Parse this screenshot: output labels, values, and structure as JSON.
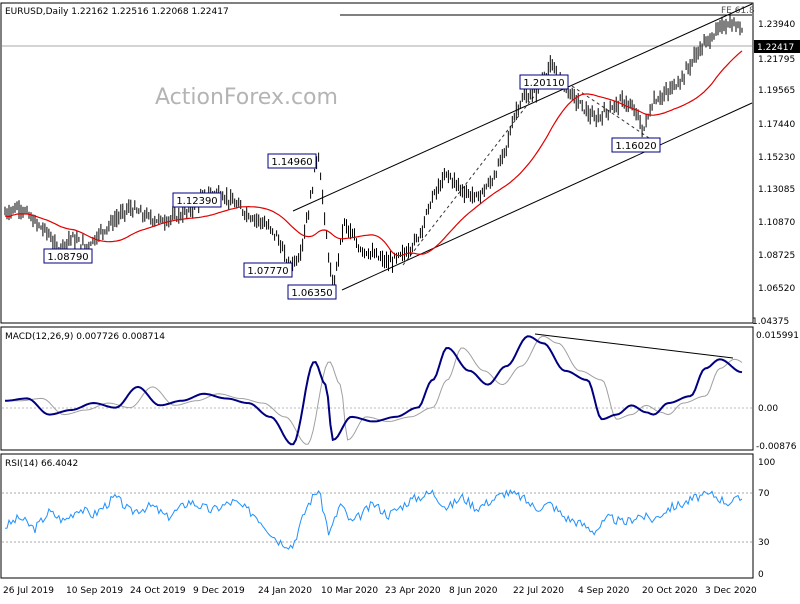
{
  "main_panel": {
    "header": "EURUSD,Daily  1.22162 1.22516 1.22068 1.22417",
    "watermark": "ActionForex.com",
    "fib_label": "FE 61.8",
    "current_price_label": "1.22417",
    "price_axis_ticks": [
      "1.23940",
      "1.21795",
      "1.19565",
      "1.17440",
      "1.15230",
      "1.13085",
      "1.10870",
      "1.08725",
      "1.06520",
      "1.04375"
    ],
    "annotations": [
      "1.20110",
      "1.14960",
      "1.12390",
      "1.08790",
      "1.07770",
      "1.06350",
      "1.16020"
    ]
  },
  "macd_panel": {
    "header": "MACD(12,26,9) 0.007726 0.008714",
    "axis_ticks": [
      "0.015991",
      "0.00",
      "-0.00876"
    ]
  },
  "rsi_panel": {
    "header": "RSI(14) 66.4042",
    "axis_ticks": [
      "100",
      "70",
      "30",
      "0"
    ]
  },
  "x_axis_labels": [
    "26 Jul 2019",
    "10 Sep 2019",
    "24 Oct 2019",
    "9 Dec 2019",
    "24 Jan 2020",
    "10 Mar 2020",
    "23 Apr 2020",
    "8 Jun 2020",
    "22 Jul 2020",
    "4 Sep 2020",
    "20 Oct 2020",
    "3 Dec 2020"
  ],
  "colors": {
    "price_bars": "#000000",
    "moving_average": "#e00000",
    "macd_line": "#000080",
    "signal_line": "#a0a0a0",
    "rsi_line": "#1e90ff",
    "label_border": "#000080"
  },
  "chart_data": [
    {
      "type": "line",
      "title": "EURUSD,Daily",
      "ylim": [
        1.04375,
        1.2394
      ],
      "x": [
        "26 Jul 2019",
        "10 Sep 2019",
        "24 Oct 2019",
        "9 Dec 2019",
        "24 Jan 2020",
        "10 Mar 2020",
        "23 Apr 2020",
        "8 Jun 2020",
        "22 Jul 2020",
        "4 Sep 2020",
        "20 Oct 2020",
        "3 Dec 2020"
      ],
      "series": [
        {
          "values": [
            1.113,
            1.099,
            1.108,
            1.111,
            1.095,
            1.13,
            1.083,
            1.126,
            1.179,
            1.184,
            1.175,
            1.212
          ]
        },
        {
          "values": [
            1.112,
            1.106,
            1.105,
            1.108,
            1.104,
            1.1,
            1.092,
            1.104,
            1.15,
            1.173,
            1.174,
            1.196
          ]
        }
      ],
      "points": [
        {
          "date": "26 Jul 2019",
          "close": 1.113
        },
        {
          "date": "10 Sep 2019",
          "close": 1.099
        },
        {
          "date": "1 Oct 2019",
          "close": 1.0879,
          "label": "1.08790"
        },
        {
          "date": "24 Oct 2019",
          "close": 1.108
        },
        {
          "date": "9 Dec 2019",
          "close": 1.111
        },
        {
          "date": "31 Dec 2019",
          "high": 1.1239,
          "label": "1.12390"
        },
        {
          "date": "24 Jan 2020",
          "close": 1.095
        },
        {
          "date": "20 Feb 2020",
          "low": 1.0777,
          "label": "1.07770"
        },
        {
          "date": "9 Mar 2020",
          "high": 1.1496,
          "label": "1.14960"
        },
        {
          "date": "10 Mar 2020",
          "close": 1.13
        },
        {
          "date": "23 Mar 2020",
          "low": 1.0635,
          "label": "1.06350"
        },
        {
          "date": "23 Apr 2020",
          "close": 1.083
        },
        {
          "date": "8 Jun 2020",
          "close": 1.126
        },
        {
          "date": "22 Jul 2020",
          "close": 1.179
        },
        {
          "date": "1 Sep 2020",
          "high": 1.2011,
          "label": "1.20110"
        },
        {
          "date": "4 Sep 2020",
          "close": 1.184
        },
        {
          "date": "20 Oct 2020",
          "close": 1.175
        },
        {
          "date": "4 Nov 2020",
          "low": 1.1602,
          "label": "1.16020"
        },
        {
          "date": "3 Dec 2020",
          "close": 1.212
        },
        {
          "date": "22 Dec 2020",
          "close": 1.22417
        }
      ],
      "reference_lines": [
        {
          "label": "FE 61.8",
          "value": 1.247
        },
        {
          "label": "1.22417",
          "value": 1.22417
        }
      ]
    },
    {
      "type": "line",
      "title": "MACD(12,26,9)",
      "ylim": [
        -0.00876,
        0.015991
      ],
      "series": [
        {
          "values": [
            0.0015,
            -0.001,
            0.001,
            0.0005,
            -0.003,
            0.007,
            -0.001,
            0.0045,
            0.012,
            0.004,
            0.0005,
            0.0077
          ]
        },
        {
          "values": [
            0.002,
            -0.0005,
            0.0008,
            0.001,
            -0.0015,
            0.003,
            0.0,
            0.004,
            0.01,
            0.006,
            0.001,
            0.0087
          ]
        }
      ]
    },
    {
      "type": "line",
      "title": "RSI(14)",
      "ylim": [
        0,
        100
      ],
      "series": [
        {
          "values": [
            45,
            48,
            62,
            60,
            35,
            70,
            45,
            62,
            72,
            50,
            50,
            66.4042
          ]
        }
      ]
    }
  ]
}
